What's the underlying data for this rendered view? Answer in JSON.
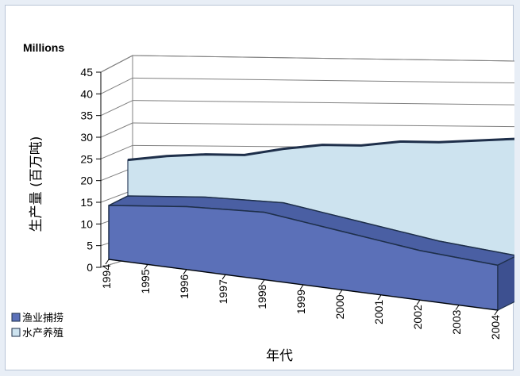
{
  "chart_data": {
    "type": "area",
    "three_d": true,
    "stacked": true,
    "units_label": "Millions",
    "ylabel": "生产量 (百万吨)",
    "xlabel": "年代",
    "categories": [
      "1994",
      "1995",
      "1996",
      "1997",
      "1998",
      "1999",
      "2000",
      "2001",
      "2002",
      "2003",
      "2004"
    ],
    "y_ticks": [
      "0",
      "5",
      "10",
      "15",
      "20",
      "25",
      "30",
      "35",
      "40",
      "45"
    ],
    "ylim": [
      0,
      45
    ],
    "grid": true,
    "legend_position": "bottom-left",
    "series": [
      {
        "name": "渔业捕捞",
        "color": "#5b70b8",
        "values": [
          12,
          13,
          14,
          14.5,
          15,
          14,
          13,
          12,
          11,
          10.5,
          10
        ]
      },
      {
        "name": "水产养殖",
        "color": "#cde3ef",
        "values": [
          8,
          9,
          9.5,
          10,
          12,
          15,
          17,
          20,
          22,
          24,
          26
        ]
      }
    ]
  }
}
